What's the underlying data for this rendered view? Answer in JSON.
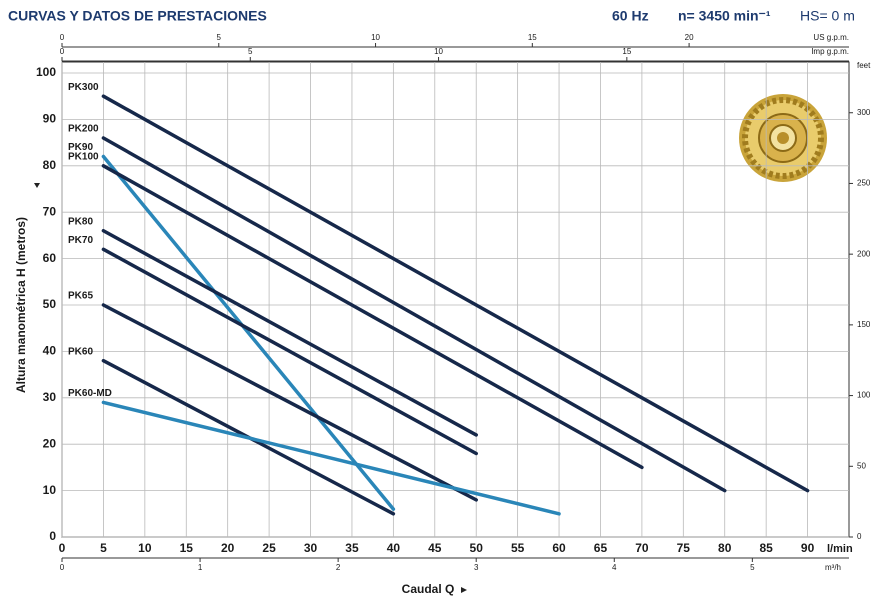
{
  "chart_data": {
    "type": "line",
    "title": "CURVAS Y DATOS DE PRESTACIONES",
    "frequency": "60 Hz",
    "speed": "n= 3450 min⁻¹",
    "suction": "HS= 0 m",
    "x_label": "Caudal Q",
    "y_label": "Altura manométrica H (metros)",
    "x_unit": "l/min",
    "xlim": [
      0,
      95
    ],
    "xticks": [
      0,
      5,
      10,
      15,
      20,
      25,
      30,
      35,
      40,
      45,
      50,
      55,
      60,
      65,
      70,
      75,
      80,
      85,
      90
    ],
    "ylim": [
      0,
      100
    ],
    "yticks": [
      0,
      10,
      20,
      30,
      40,
      50,
      60,
      70,
      80,
      90,
      100
    ],
    "grid": true,
    "top_axes": [
      {
        "unit": "US g.p.m.",
        "lim": [
          0,
          25.1
        ],
        "ticks": [
          0,
          5,
          10,
          15,
          20
        ]
      },
      {
        "unit": "Imp g.p.m.",
        "lim": [
          0,
          20.9
        ],
        "ticks": [
          0,
          5,
          10,
          15
        ]
      }
    ],
    "bottom_axis2": {
      "unit": "m³/h",
      "lim": [
        0,
        5.7
      ],
      "ticks": [
        0,
        1,
        2,
        3,
        4,
        5
      ]
    },
    "y2_unit": "feet",
    "y2lim": [
      0,
      328.1
    ],
    "y2ticks": [
      0,
      50,
      100,
      150,
      200,
      250,
      300
    ],
    "series": [
      {
        "name": "PK300",
        "color": "#16284a",
        "x": [
          5,
          90
        ],
        "values": [
          95,
          10
        ]
      },
      {
        "name": "PK200",
        "color": "#16284a",
        "x": [
          5,
          80
        ],
        "values": [
          86,
          10
        ]
      },
      {
        "name": "PK90",
        "color": "#2a86b8",
        "x": [
          5,
          40
        ],
        "values": [
          82,
          6
        ]
      },
      {
        "name": "PK100",
        "color": "#16284a",
        "x": [
          5,
          70
        ],
        "values": [
          80,
          15
        ]
      },
      {
        "name": "PK80",
        "color": "#16284a",
        "x": [
          5,
          50
        ],
        "values": [
          66,
          22
        ]
      },
      {
        "name": "PK70",
        "color": "#16284a",
        "x": [
          5,
          50
        ],
        "values": [
          62,
          18
        ]
      },
      {
        "name": "PK65",
        "color": "#16284a",
        "x": [
          5,
          50
        ],
        "values": [
          50,
          8
        ]
      },
      {
        "name": "PK60",
        "color": "#16284a",
        "x": [
          5,
          40
        ],
        "values": [
          38,
          5
        ]
      },
      {
        "name": "PK60-MD",
        "color": "#2a86b8",
        "x": [
          5,
          60
        ],
        "values": [
          29,
          5
        ]
      }
    ]
  }
}
